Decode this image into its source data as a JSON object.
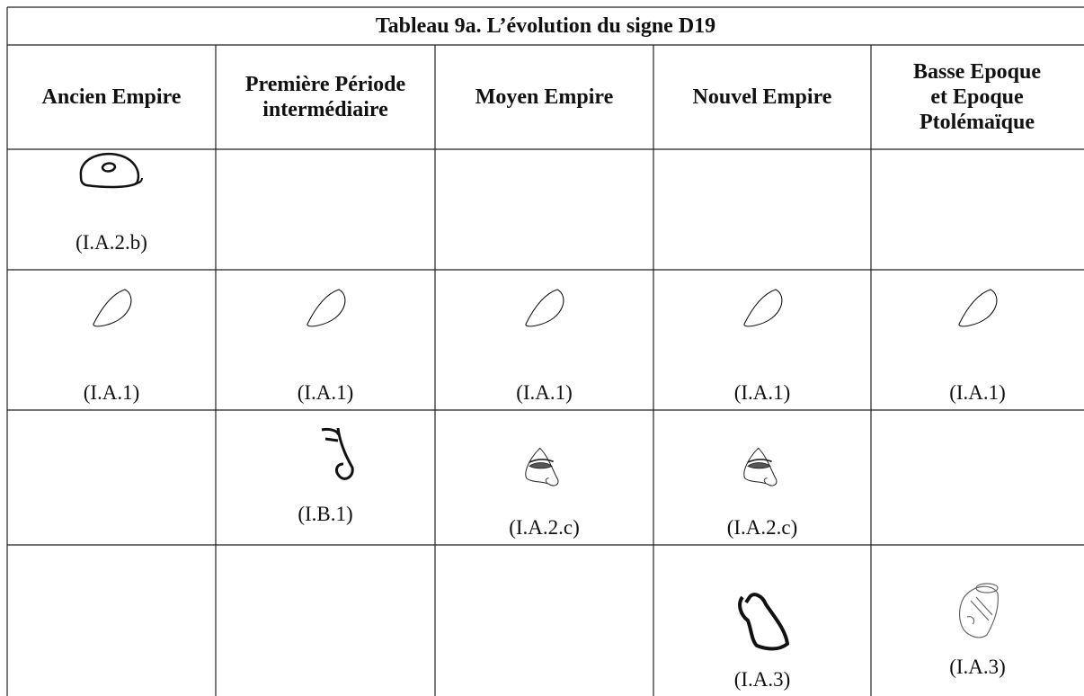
{
  "table": {
    "title": "Tableau 9a. L’évolution du signe D19",
    "headers": [
      "Ancien Empire",
      "Première Période intermédiaire",
      "Moyen Empire",
      "Nouvel Empire",
      "Basse Epoque et Epoque Ptolémaïque"
    ],
    "rows": [
      [
        "(I.A.2.b)",
        null,
        null,
        null,
        null
      ],
      [
        "(I.A.1)",
        "(I.A.1)",
        "(I.A.1)",
        "(I.A.1)",
        "(I.A.1)"
      ],
      [
        null,
        "(I.B.1)",
        "(I.A.2.c)",
        "(I.A.2.c)",
        null
      ],
      [
        null,
        null,
        null,
        "(I.A.3)",
        "(I.A.3)"
      ]
    ]
  }
}
